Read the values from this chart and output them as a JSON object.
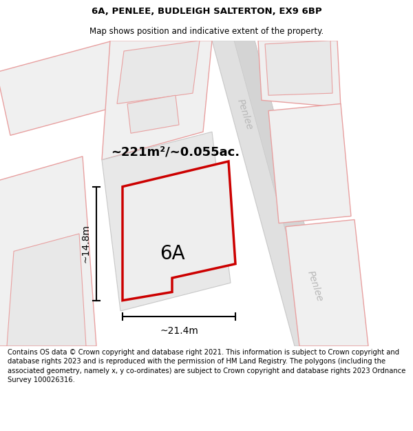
{
  "title": "6A, PENLEE, BUDLEIGH SALTERTON, EX9 6BP",
  "subtitle": "Map shows position and indicative extent of the property.",
  "footer": "Contains OS data © Crown copyright and database right 2021. This information is subject to Crown copyright and database rights 2023 and is reproduced with the permission of HM Land Registry. The polygons (including the associated geometry, namely x, y co-ordinates) are subject to Crown copyright and database rights 2023 Ordnance Survey 100026316.",
  "area_text": "~221m²/~0.055ac.",
  "label_6a": "6A",
  "dim_width": "~21.4m",
  "dim_height": "~14.8m",
  "penlee_label": "Penlee",
  "bg_color": "#ffffff",
  "road_fill": "#e0e0e0",
  "road_edge": "#c8c8c8",
  "plot_fill": "#eeeeee",
  "plot_outline_color": "#cc0000",
  "block_fill": "#f0f0f0",
  "block_edge": "#e8a0a0",
  "penlee_color": "#b8b8b8",
  "title_fontsize": 9.5,
  "subtitle_fontsize": 8.5,
  "footer_fontsize": 7.2,
  "area_fontsize": 13,
  "label_fontsize": 20,
  "dim_fontsize": 10,
  "penlee_fontsize": 10
}
